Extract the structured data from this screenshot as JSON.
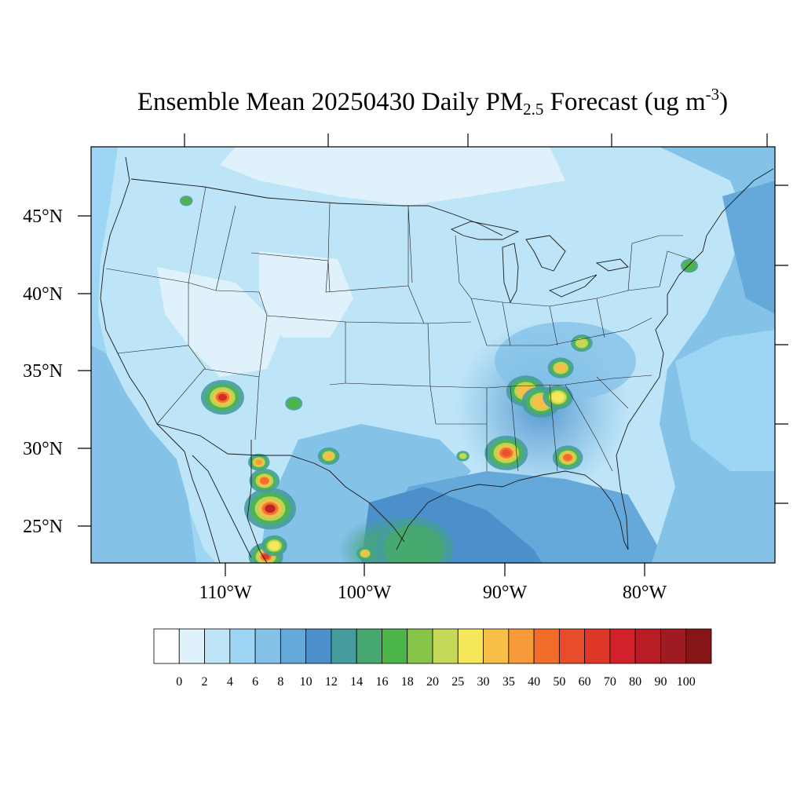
{
  "title": {
    "prefix": "Ensemble Mean 20250430 Daily PM",
    "subscript": "2.5",
    "middle": " Forecast (ug m",
    "superscript": "-3",
    "suffix": ")"
  },
  "axes": {
    "lat_labels": [
      "45°N",
      "40°N",
      "35°N",
      "30°N",
      "25°N"
    ],
    "lon_labels": [
      "110°W",
      "100°W",
      "90°W",
      "80°W"
    ]
  },
  "colorbar": {
    "levels": [
      "0",
      "2",
      "4",
      "6",
      "8",
      "10",
      "12",
      "14",
      "16",
      "18",
      "20",
      "25",
      "30",
      "35",
      "40",
      "50",
      "60",
      "70",
      "80",
      "90",
      "100"
    ],
    "colors": [
      "#ffffff",
      "#dff1fb",
      "#bde4f7",
      "#9dd6f4",
      "#84c2e8",
      "#64a9da",
      "#4b8fcb",
      "#469c9c",
      "#46a86e",
      "#4cb54a",
      "#86c54a",
      "#c5d858",
      "#f6e75b",
      "#f7bf48",
      "#f69a3a",
      "#f26d2a",
      "#e84d2b",
      "#de3728",
      "#d2212a",
      "#b81d25",
      "#a01b21",
      "#851517"
    ]
  },
  "hotspots": [
    {
      "lon": -110.2,
      "lat": 33.3,
      "value": 70,
      "size": 1.0
    },
    {
      "lon": -106.8,
      "lat": 26.1,
      "value": 80,
      "size": 1.2
    },
    {
      "lon": -107.2,
      "lat": 27.9,
      "value": 40,
      "size": 0.7
    },
    {
      "lon": -107.6,
      "lat": 29.1,
      "value": 35,
      "size": 0.5
    },
    {
      "lon": -107.1,
      "lat": 23.0,
      "value": 60,
      "size": 0.8
    },
    {
      "lon": -106.5,
      "lat": 23.7,
      "value": 25,
      "size": 0.6
    },
    {
      "lon": -102.6,
      "lat": 29.5,
      "value": 30,
      "size": 0.5
    },
    {
      "lon": -100.0,
      "lat": 23.2,
      "value": 30,
      "size": 0.4
    },
    {
      "lon": -89.9,
      "lat": 29.7,
      "value": 50,
      "size": 1.0
    },
    {
      "lon": -85.5,
      "lat": 29.4,
      "value": 40,
      "size": 0.7
    },
    {
      "lon": -88.5,
      "lat": 33.7,
      "value": 30,
      "size": 0.9
    },
    {
      "lon": -87.4,
      "lat": 33.0,
      "value": 30,
      "size": 0.9
    },
    {
      "lon": -86.0,
      "lat": 35.2,
      "value": 30,
      "size": 0.6
    },
    {
      "lon": -86.2,
      "lat": 33.3,
      "value": 25,
      "size": 0.7
    },
    {
      "lon": -84.5,
      "lat": 36.8,
      "value": 20,
      "size": 0.5
    },
    {
      "lon": -76.8,
      "lat": 41.8,
      "value": 16,
      "size": 0.4
    },
    {
      "lon": -112.8,
      "lat": 46.0,
      "value": 16,
      "size": 0.3
    },
    {
      "lon": -105.1,
      "lat": 32.9,
      "value": 16,
      "size": 0.4
    },
    {
      "lon": -93.0,
      "lat": 29.5,
      "value": 20,
      "size": 0.3
    },
    {
      "lon": -96.5,
      "lat": 23.5,
      "value": 14,
      "size": 1.8
    }
  ]
}
